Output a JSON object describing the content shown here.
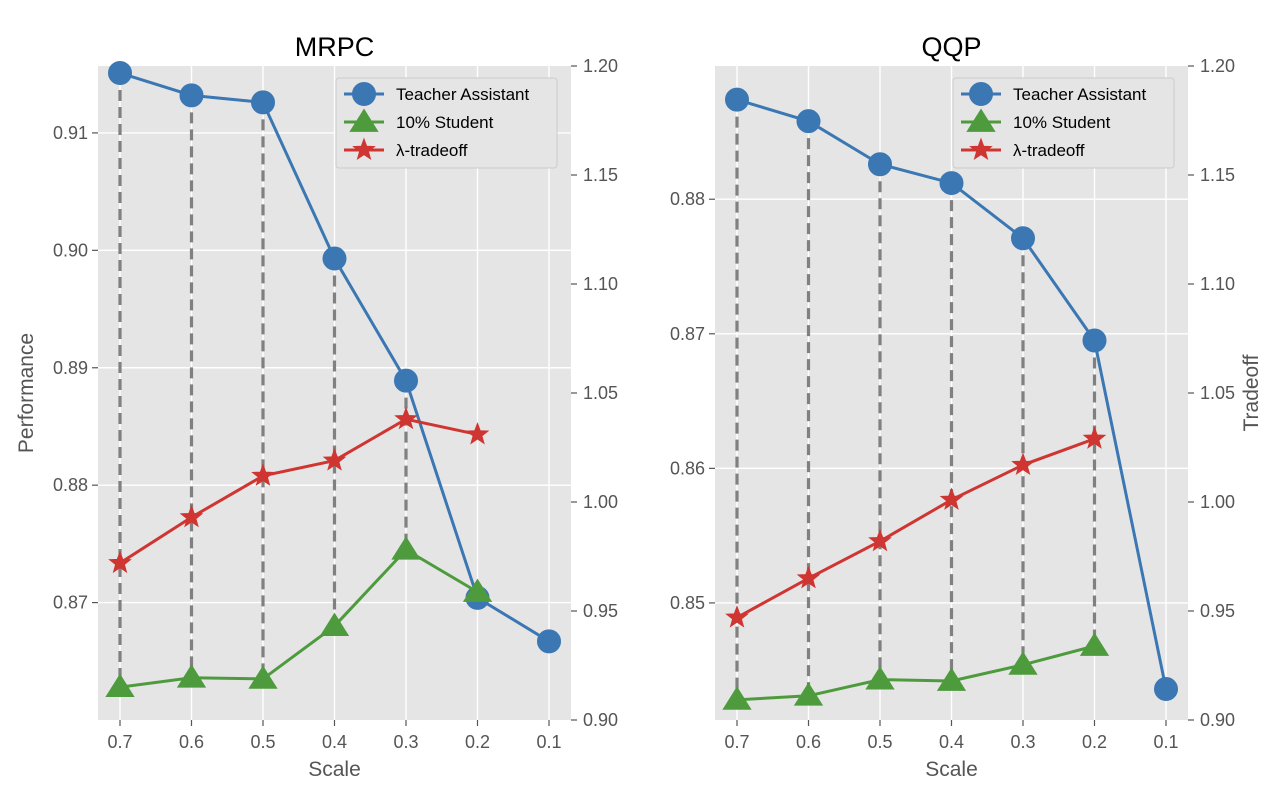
{
  "chart_data": [
    {
      "type": "line",
      "title": "MRPC",
      "xlabel": "Scale",
      "ylabel": "Performance",
      "y2label": "",
      "categories": [
        "0.7",
        "0.6",
        "0.5",
        "0.4",
        "0.3",
        "0.2",
        "0.1"
      ],
      "ylim": [
        0.86,
        0.9157
      ],
      "yticks": [
        0.87,
        0.88,
        0.89,
        0.9,
        0.91
      ],
      "ytick_labels": [
        "0.87",
        "0.88",
        "0.89",
        "0.90",
        "0.91"
      ],
      "y2lim": [
        0.9,
        1.2
      ],
      "y2ticks": [
        0.9,
        0.95,
        1.0,
        1.05,
        1.1,
        1.15,
        1.2
      ],
      "y2tick_labels": [
        "0.90",
        "0.95",
        "1.00",
        "1.05",
        "1.10",
        "1.15",
        "1.20"
      ],
      "series": [
        {
          "name": "Teacher Assistant",
          "axis": "left",
          "marker": "circle",
          "color": "#3b77b3",
          "values": [
            0.9151,
            0.9132,
            0.9126,
            0.8993,
            0.8889,
            0.8704,
            0.8667
          ]
        },
        {
          "name": "10% Student",
          "axis": "left",
          "marker": "triangle",
          "color": "#4e9b3e",
          "values": [
            0.8628,
            0.8636,
            0.8635,
            0.868,
            0.8745,
            0.8709,
            null
          ]
        },
        {
          "name": "λ-tradeoff",
          "axis": "right",
          "marker": "star",
          "color": "#cf3531",
          "values": [
            0.972,
            0.993,
            1.012,
            1.019,
            1.038,
            1.031,
            null
          ]
        }
      ],
      "legend_position": "top-right"
    },
    {
      "type": "line",
      "title": "QQP",
      "xlabel": "Scale",
      "ylabel": "",
      "y2label": "Tradeoff",
      "categories": [
        "0.7",
        "0.6",
        "0.5",
        "0.4",
        "0.3",
        "0.2",
        "0.1"
      ],
      "ylim": [
        0.8413,
        0.8899
      ],
      "yticks": [
        0.85,
        0.86,
        0.87,
        0.88
      ],
      "ytick_labels": [
        "0.85",
        "0.86",
        "0.87",
        "0.88"
      ],
      "y2lim": [
        0.9,
        1.2
      ],
      "y2ticks": [
        0.9,
        0.95,
        1.0,
        1.05,
        1.1,
        1.15,
        1.2
      ],
      "y2tick_labels": [
        "0.90",
        "0.95",
        "1.00",
        "1.05",
        "1.10",
        "1.15",
        "1.20"
      ],
      "series": [
        {
          "name": "Teacher Assistant",
          "axis": "left",
          "marker": "circle",
          "color": "#3b77b3",
          "values": [
            0.8874,
            0.8858,
            0.8826,
            0.8812,
            0.8771,
            0.8695,
            0.8436
          ]
        },
        {
          "name": "10% Student",
          "axis": "left",
          "marker": "triangle",
          "color": "#4e9b3e",
          "values": [
            0.8428,
            0.8431,
            0.8443,
            0.8442,
            0.8454,
            0.8468,
            null
          ]
        },
        {
          "name": "λ-tradeoff",
          "axis": "right",
          "marker": "star",
          "color": "#cf3531",
          "values": [
            0.947,
            0.965,
            0.982,
            1.001,
            1.017,
            1.029,
            null
          ]
        }
      ],
      "legend_position": "top-right"
    }
  ],
  "colors": {
    "plot_background": "#e5e5e5",
    "grid": "#ffffff",
    "connector": "#808080"
  }
}
